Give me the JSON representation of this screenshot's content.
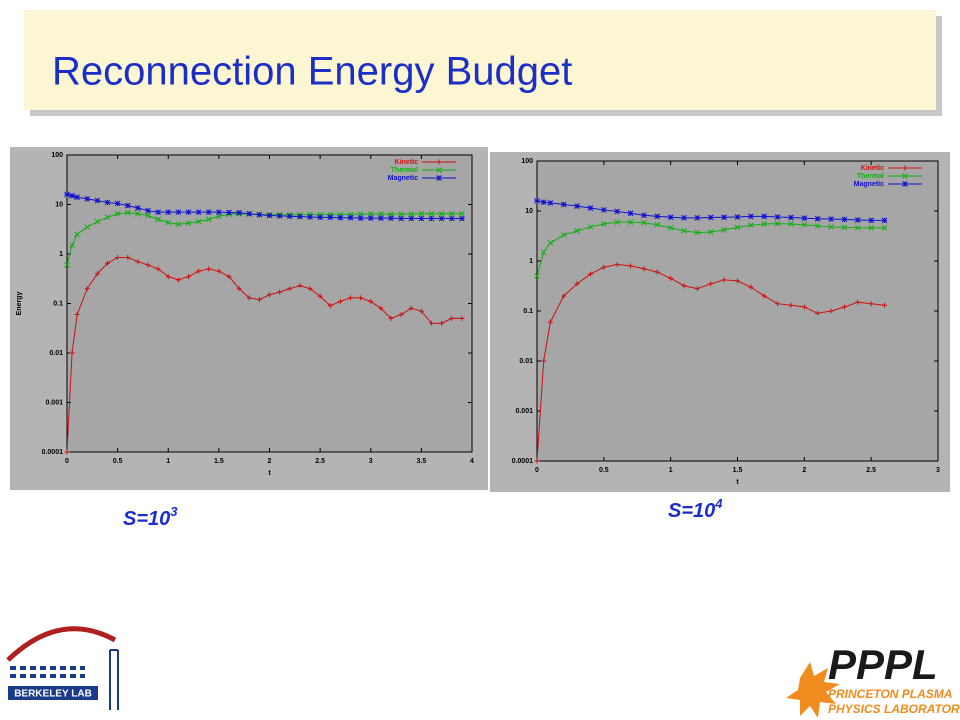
{
  "title": "Reconnection Energy Budget",
  "captions": [
    {
      "text": "S=10",
      "exponent": "3"
    },
    {
      "text": "S=10",
      "exponent": "4"
    }
  ],
  "logos": {
    "berkeley": "BERKELEY LAB",
    "pppl": "PPPL",
    "pppl_line1": "PRINCETON PLASMA",
    "pppl_line2": "PHYSICS LABORATORY"
  },
  "chart_data": [
    {
      "type": "line",
      "x_label": "t",
      "y_label": "Energy",
      "log_y": true,
      "grid": false,
      "legend": "upper right",
      "xlim": [
        0,
        4
      ],
      "xticks": [
        0,
        0.5,
        1,
        1.5,
        2,
        2.5,
        3,
        3.5,
        4
      ],
      "ylim": [
        0.0001,
        100
      ],
      "yticks": [
        0.0001,
        0.001,
        0.01,
        0.1,
        1,
        10,
        100
      ],
      "x": [
        0,
        0.05,
        0.1,
        0.2,
        0.3,
        0.4,
        0.5,
        0.6,
        0.7,
        0.8,
        0.9,
        1.0,
        1.1,
        1.2,
        1.3,
        1.4,
        1.5,
        1.6,
        1.7,
        1.8,
        1.9,
        2.0,
        2.1,
        2.2,
        2.3,
        2.4,
        2.5,
        2.6,
        2.7,
        2.8,
        2.9,
        3.0,
        3.1,
        3.2,
        3.3,
        3.4,
        3.5,
        3.6,
        3.7,
        3.8,
        3.9
      ],
      "series": [
        {
          "name": "Kinetic",
          "color": "#d01010",
          "values": [
            0.0001,
            0.01,
            0.06,
            0.2,
            0.4,
            0.65,
            0.85,
            0.85,
            0.7,
            0.6,
            0.5,
            0.35,
            0.3,
            0.35,
            0.45,
            0.5,
            0.45,
            0.35,
            0.2,
            0.13,
            0.12,
            0.15,
            0.17,
            0.2,
            0.23,
            0.2,
            0.14,
            0.09,
            0.11,
            0.13,
            0.13,
            0.11,
            0.08,
            0.05,
            0.06,
            0.08,
            0.07,
            0.04,
            0.04,
            0.05,
            0.05
          ]
        },
        {
          "name": "Thermal",
          "color": "#10b010",
          "values": [
            0.6,
            1.5,
            2.5,
            3.5,
            4.5,
            5.5,
            6.5,
            6.8,
            6.5,
            6,
            5,
            4.3,
            4,
            4.2,
            4.5,
            5,
            5.8,
            6.3,
            6.5,
            6.4,
            6.3,
            6.2,
            6.2,
            6.2,
            6.2,
            6.3,
            6.3,
            6.3,
            6.3,
            6.3,
            6.4,
            6.4,
            6.4,
            6.4,
            6.4,
            6.4,
            6.5,
            6.5,
            6.5,
            6.5,
            6.5
          ]
        },
        {
          "name": "Magnetic",
          "color": "#1010d0",
          "values": [
            16,
            15,
            14,
            13,
            12,
            11,
            10.5,
            9.5,
            8.5,
            7.5,
            7,
            7,
            7,
            7,
            7,
            7,
            7,
            6.9,
            6.8,
            6.5,
            6.2,
            6,
            5.9,
            5.8,
            5.7,
            5.6,
            5.5,
            5.5,
            5.4,
            5.4,
            5.3,
            5.3,
            5.3,
            5.3,
            5.2,
            5.2,
            5.2,
            5.2,
            5.2,
            5.2,
            5.2
          ]
        }
      ]
    },
    {
      "type": "line",
      "x_label": "t",
      "log_y": true,
      "grid": false,
      "legend": "upper right",
      "xlim": [
        0,
        3
      ],
      "xticks": [
        0,
        0.5,
        1,
        1.5,
        2,
        2.5,
        3
      ],
      "ylim": [
        0.0001,
        100
      ],
      "yticks": [
        0.0001,
        0.001,
        0.01,
        0.1,
        1,
        10,
        100
      ],
      "x": [
        0,
        0.05,
        0.1,
        0.2,
        0.3,
        0.4,
        0.5,
        0.6,
        0.7,
        0.8,
        0.9,
        1.0,
        1.1,
        1.2,
        1.3,
        1.4,
        1.5,
        1.6,
        1.7,
        1.8,
        1.9,
        2.0,
        2.1,
        2.2,
        2.3,
        2.4,
        2.5,
        2.6
      ],
      "series": [
        {
          "name": "Kinetic",
          "color": "#d01010",
          "values": [
            0.0001,
            0.01,
            0.06,
            0.2,
            0.35,
            0.55,
            0.75,
            0.85,
            0.8,
            0.7,
            0.6,
            0.45,
            0.32,
            0.28,
            0.35,
            0.42,
            0.4,
            0.3,
            0.2,
            0.14,
            0.13,
            0.12,
            0.09,
            0.1,
            0.12,
            0.15,
            0.14,
            0.13
          ]
        },
        {
          "name": "Thermal",
          "color": "#10b010",
          "values": [
            0.5,
            1.5,
            2.3,
            3.3,
            4,
            4.8,
            5.5,
            6,
            6,
            5.8,
            5.3,
            4.6,
            4,
            3.7,
            3.8,
            4.2,
            4.7,
            5.2,
            5.5,
            5.6,
            5.5,
            5.3,
            5,
            4.8,
            4.7,
            4.6,
            4.6,
            4.6
          ]
        },
        {
          "name": "Magnetic",
          "color": "#1010d0",
          "values": [
            16,
            15,
            14.5,
            13.5,
            12.5,
            11.5,
            10.5,
            9.8,
            9,
            8.2,
            7.8,
            7.5,
            7.3,
            7.3,
            7.4,
            7.5,
            7.6,
            7.8,
            7.8,
            7.6,
            7.4,
            7.2,
            7,
            6.9,
            6.8,
            6.6,
            6.5,
            6.5
          ]
        }
      ]
    }
  ]
}
